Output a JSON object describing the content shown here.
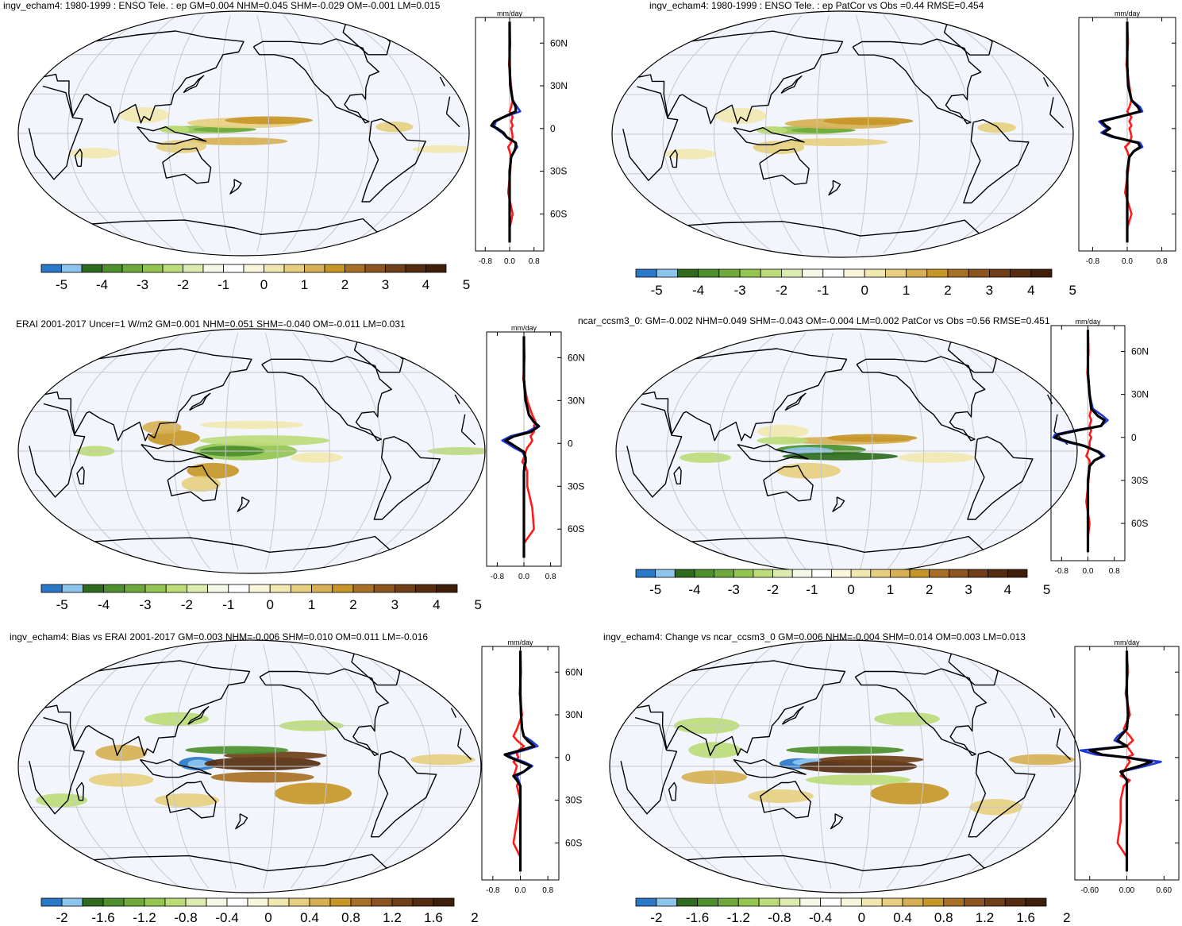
{
  "chart_data": [
    {
      "type": "heatmap",
      "title": "ingv_echam4: 1980-1999 : ENSO Tele. : ep GM=0.004 NHM=0.045 SHM=-0.029 OM=-0.001 LM=0.015",
      "colorbar_ticks": [
        "-5",
        "-4",
        "-3",
        "-2",
        "-1",
        "0",
        "1",
        "2",
        "3",
        "4",
        "5"
      ],
      "profile": {
        "unit": "mm/day",
        "x_ticks": [
          "-0.8",
          "0.0",
          "0.8"
        ],
        "y_ticks": [
          "60N",
          "30N",
          "0",
          "30S",
          "60S"
        ],
        "series_colors": {
          "black": "#000000",
          "blue": "#1f3bd6",
          "red": "#ff1a1a"
        },
        "latitudes": [
          75,
          60,
          45,
          30,
          20,
          15,
          12,
          8,
          5,
          2,
          0,
          -3,
          -6,
          -10,
          -13,
          -16,
          -20,
          -30,
          -45,
          -60,
          -70,
          -80
        ],
        "black": [
          0,
          0,
          0,
          0.02,
          0.1,
          0.2,
          0.2,
          -0.2,
          -0.5,
          -0.6,
          -0.4,
          -0.2,
          -0.1,
          0.2,
          0.2,
          0.15,
          0.05,
          0,
          0,
          0,
          0,
          0
        ],
        "blue": [
          0,
          0,
          0,
          0.03,
          0.1,
          0.25,
          0.35,
          -0.2,
          -0.45,
          -0.5,
          -0.45,
          -0.25,
          -0.1,
          0.2,
          0.25,
          0.15,
          0.05,
          0,
          0,
          0,
          0,
          0
        ],
        "red": [
          0,
          0.02,
          -0.02,
          0.05,
          0.1,
          0.05,
          0.0,
          0.1,
          0.05,
          0.1,
          0.05,
          0.08,
          0.1,
          0.05,
          -0.05,
          0.0,
          0.05,
          0.02,
          -0.05,
          0.1,
          0,
          0
        ]
      }
    },
    {
      "type": "heatmap",
      "title": "ingv_echam4: 1980-1999 : ENSO Tele. : ep PatCor vs Obs =0.44 RMSE=0.454",
      "colorbar_ticks": [
        "-5",
        "-4",
        "-3",
        "-2",
        "-1",
        "0",
        "1",
        "2",
        "3",
        "4",
        "5"
      ],
      "profile": {
        "unit": "mm/day",
        "x_ticks": [
          "-0.8",
          "0.0",
          "0.8"
        ],
        "y_ticks": [
          "60",
          "30",
          "0",
          "30",
          "60"
        ],
        "series_colors": {
          "black": "#000000",
          "blue": "#1f3bd6",
          "red": "#ff1a1a"
        },
        "latitudes": [
          75,
          60,
          45,
          30,
          20,
          15,
          12,
          8,
          5,
          2,
          0,
          -3,
          -6,
          -10,
          -13,
          -16,
          -20,
          -30,
          -45,
          -60,
          -70,
          -80
        ],
        "black": [
          0,
          0,
          0,
          0.02,
          0.1,
          0.25,
          0.3,
          -0.2,
          -0.6,
          -0.5,
          -0.4,
          -0.55,
          -0.3,
          0.25,
          0.3,
          0.15,
          0.05,
          0,
          0,
          0,
          0,
          0
        ],
        "blue": [
          0,
          0,
          0,
          0.03,
          0.1,
          0.3,
          0.35,
          -0.25,
          -0.65,
          -0.55,
          -0.45,
          -0.6,
          -0.35,
          0.3,
          0.35,
          0.15,
          0.05,
          0,
          0,
          0,
          0,
          0
        ],
        "red": [
          0,
          0.02,
          -0.02,
          0.05,
          0.1,
          0.05,
          0.0,
          0.1,
          0.05,
          0.1,
          0.05,
          0.08,
          0.1,
          0.05,
          -0.05,
          0.0,
          0.05,
          0.02,
          -0.05,
          0.1,
          0,
          0
        ]
      }
    },
    {
      "type": "heatmap",
      "title": "ERAI 2001-2017 Uncer=1 W/m2 GM=0.001 NHM=0.051 SHM=-0.040 OM=-0.011 LM=0.031",
      "colorbar_ticks": [
        "-5",
        "-4",
        "-3",
        "-2",
        "-1",
        "0",
        "1",
        "2",
        "3",
        "4",
        "5"
      ],
      "profile": {
        "unit": "mm/day",
        "x_ticks": [
          "-0.8",
          "0.0",
          "0.8"
        ],
        "y_ticks": [
          "60N",
          "30N",
          "0",
          "30S",
          "60S"
        ],
        "series_colors": {
          "black": "#000000",
          "blue": "#1f3bd6",
          "red": "#ff1a1a"
        },
        "latitudes": [
          75,
          60,
          45,
          30,
          20,
          15,
          12,
          8,
          5,
          2,
          0,
          -3,
          -6,
          -10,
          -13,
          -16,
          -20,
          -30,
          -45,
          -60,
          -70,
          -80
        ],
        "black": [
          0,
          0,
          0,
          0.05,
          0.15,
          0.3,
          0.45,
          0.2,
          -0.3,
          -0.55,
          -0.4,
          -0.2,
          0.0,
          0.05,
          0.05,
          0.02,
          0,
          0,
          0,
          0,
          0,
          0
        ],
        "blue": [
          0,
          0,
          0,
          0.05,
          0.15,
          0.3,
          0.4,
          0.1,
          -0.4,
          -0.65,
          -0.5,
          -0.3,
          -0.05,
          0.05,
          0.05,
          0.02,
          0,
          0,
          0,
          0,
          0,
          0
        ],
        "red": [
          0,
          0.02,
          -0.02,
          0.1,
          0.25,
          0.35,
          0.3,
          0.3,
          0.2,
          0.25,
          0.2,
          0.1,
          0.05,
          0.0,
          -0.05,
          0.05,
          0.1,
          0.1,
          0.25,
          0.3,
          0,
          0
        ]
      }
    },
    {
      "type": "heatmap",
      "title": "ncar_ccsm3_0: GM=-0.002 NHM=0.049 SHM=-0.043 OM=-0.004 LM=0.002 PatCor vs Obs =0.56 RMSE=0.451",
      "colorbar_ticks": [
        "-5",
        "-4",
        "-3",
        "-2",
        "-1",
        "0",
        "1",
        "2",
        "3",
        "4",
        "5"
      ],
      "profile": {
        "unit": "mm/day",
        "x_ticks": [
          "-0.8",
          "0.0",
          "0.8"
        ],
        "y_ticks": [
          "60N",
          "30N",
          "0",
          "30S",
          "60S"
        ],
        "series_colors": {
          "black": "#000000",
          "blue": "#1f3bd6",
          "red": "#ff1a1a"
        },
        "latitudes": [
          75,
          60,
          45,
          30,
          20,
          15,
          12,
          8,
          5,
          2,
          0,
          -3,
          -6,
          -10,
          -13,
          -16,
          -20,
          -30,
          -45,
          -60,
          -70,
          -80
        ],
        "black": [
          0,
          0,
          0,
          0.05,
          0.1,
          0.3,
          0.5,
          0.4,
          -0.3,
          -0.9,
          -1.0,
          -0.6,
          -0.1,
          0.3,
          0.45,
          0.2,
          0.05,
          0,
          0,
          0,
          0,
          0
        ],
        "blue": [
          0,
          0,
          0,
          0.05,
          0.15,
          0.45,
          0.6,
          0.4,
          -0.4,
          -1.0,
          -1.05,
          -0.7,
          -0.1,
          0.35,
          0.5,
          0.2,
          0.05,
          0,
          0,
          0,
          0,
          0
        ],
        "red": [
          0,
          0.02,
          -0.02,
          0.05,
          0.1,
          0.05,
          0.1,
          0.05,
          0.1,
          0.05,
          0.1,
          0.05,
          0.05,
          0.0,
          -0.05,
          0.05,
          0.05,
          0.02,
          -0.05,
          0.05,
          0,
          0
        ]
      }
    },
    {
      "type": "heatmap",
      "title": "ingv_echam4: Bias vs ERAI 2001-2017 GM=0.003 NHM=-0.006 SHM=0.010 OM=0.011 LM=-0.016",
      "colorbar_ticks": [
        "-2",
        "-1.6",
        "-1.2",
        "-0.8",
        "-0.4",
        "0",
        "0.4",
        "0.8",
        "1.2",
        "1.6",
        "2"
      ],
      "profile": {
        "unit": "mm/day",
        "x_ticks": [
          "-0.8",
          "0.0",
          "0.8"
        ],
        "y_ticks": [
          "60N",
          "30N",
          "0",
          "30S",
          "60S"
        ],
        "series_colors": {
          "black": "#000000",
          "blue": "#1f3bd6",
          "red": "#ff1a1a"
        },
        "latitudes": [
          75,
          60,
          45,
          30,
          20,
          15,
          12,
          8,
          5,
          2,
          0,
          -3,
          -6,
          -10,
          -13,
          -16,
          -20,
          -30,
          -45,
          -60,
          -70,
          -80
        ],
        "black": [
          0,
          0,
          0,
          0.02,
          0.05,
          0.1,
          0.2,
          0.4,
          0.0,
          -0.45,
          -0.3,
          0.0,
          0.3,
          0.1,
          -0.2,
          -0.1,
          0,
          0,
          0,
          0,
          0,
          0
        ],
        "blue": [
          0,
          0,
          0,
          0.02,
          0.05,
          0.1,
          0.3,
          0.5,
          0.1,
          -0.35,
          -0.25,
          0.1,
          0.35,
          0.1,
          -0.1,
          -0.05,
          0,
          0,
          0,
          0,
          0,
          0
        ],
        "red": [
          0,
          0.02,
          -0.02,
          0.05,
          -0.1,
          -0.2,
          -0.1,
          0.1,
          -0.05,
          -0.1,
          -0.05,
          -0.2,
          -0.1,
          -0.15,
          -0.2,
          -0.05,
          -0.1,
          0.0,
          -0.1,
          -0.2,
          0,
          0
        ]
      }
    },
    {
      "type": "heatmap",
      "title": "ingv_echam4: Change vs ncar_ccsm3_0 GM=0.006 NHM=-0.004 SHM=0.014 OM=0.003 LM=0.013",
      "colorbar_ticks": [
        "-2",
        "-1.6",
        "-1.2",
        "-0.8",
        "-0.4",
        "0",
        "0.4",
        "0.8",
        "1.2",
        "1.6",
        "2"
      ],
      "profile": {
        "unit": "mm/day",
        "x_ticks": [
          "-0.60",
          "0.00",
          "0.60"
        ],
        "y_ticks": [
          "60N",
          "30N",
          "0",
          "30S",
          "60S"
        ],
        "series_colors": {
          "black": "#000000",
          "blue": "#1f3bd6",
          "red": "#ff1a1a"
        },
        "latitudes": [
          75,
          60,
          45,
          30,
          20,
          15,
          12,
          8,
          5,
          2,
          0,
          -3,
          -6,
          -10,
          -13,
          -16,
          -20,
          -30,
          -45,
          -60,
          -70,
          -80
        ],
        "black": [
          0,
          0,
          0,
          0.02,
          0.0,
          -0.1,
          -0.15,
          0.0,
          -0.6,
          -0.4,
          0.0,
          0.4,
          0.2,
          -0.1,
          -0.05,
          0,
          0,
          0,
          0,
          0,
          0,
          0
        ],
        "blue": [
          0,
          0,
          0,
          0.02,
          0.0,
          -0.15,
          -0.2,
          0.0,
          -0.75,
          -0.5,
          0.0,
          0.55,
          0.3,
          -0.1,
          -0.05,
          0,
          0,
          0,
          0,
          0,
          0,
          0
        ],
        "red": [
          0,
          0.02,
          -0.02,
          0.05,
          -0.05,
          0.05,
          0.1,
          0.0,
          0.05,
          0.1,
          0.0,
          0.05,
          0.0,
          -0.05,
          -0.1,
          0.05,
          -0.05,
          -0.1,
          -0.1,
          -0.15,
          0,
          0
        ]
      }
    }
  ],
  "colors": {
    "colorbar": [
      "#2a78c8",
      "#8cc4ee",
      "#2e6b1e",
      "#4d8f2c",
      "#6fa83c",
      "#94c452",
      "#bcdc7a",
      "#dcecb0",
      "#f4f8e6",
      "#ffffff",
      "#faf6dc",
      "#f1e7b0",
      "#e6cf7f",
      "#d7b055",
      "#c79628",
      "#a87026",
      "#8c5420",
      "#6e3f18",
      "#552c10",
      "#3f1e0a"
    ],
    "ocean": "#f3f5fd",
    "grid": "#c8c8c8"
  }
}
